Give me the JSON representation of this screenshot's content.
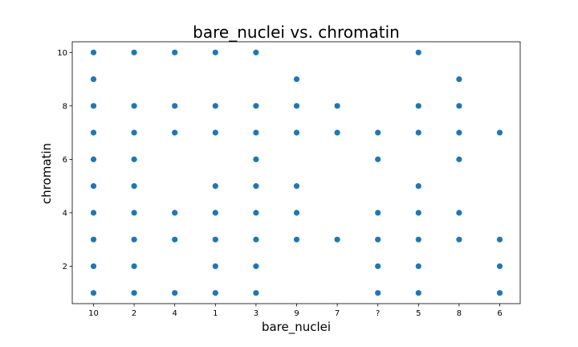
{
  "chart_data": {
    "type": "scatter",
    "title": "bare_nuclei vs. chromatin",
    "xlabel": "bare_nuclei",
    "ylabel": "chromatin",
    "categories": [
      "10",
      "2",
      "4",
      "1",
      "3",
      "9",
      "7",
      "?",
      "5",
      "8",
      "6"
    ],
    "yticks": [
      2,
      4,
      6,
      8,
      10
    ],
    "ylim": [
      0.6,
      10.4
    ],
    "grid": false,
    "point_color": "#1f77b4",
    "points": [
      {
        "x": "10",
        "y": [
          1,
          2,
          3,
          4,
          5,
          6,
          7,
          8,
          9,
          10
        ]
      },
      {
        "x": "2",
        "y": [
          1,
          2,
          3,
          4,
          5,
          6,
          7,
          8,
          10
        ]
      },
      {
        "x": "4",
        "y": [
          1,
          3,
          4,
          7,
          8,
          10
        ]
      },
      {
        "x": "1",
        "y": [
          1,
          2,
          3,
          4,
          5,
          7,
          8,
          10
        ]
      },
      {
        "x": "3",
        "y": [
          1,
          2,
          3,
          4,
          5,
          6,
          7,
          8,
          10
        ]
      },
      {
        "x": "9",
        "y": [
          3,
          4,
          5,
          7,
          8,
          9
        ]
      },
      {
        "x": "7",
        "y": [
          3,
          7,
          8
        ]
      },
      {
        "x": "?",
        "y": [
          1,
          2,
          3,
          4,
          6,
          7
        ]
      },
      {
        "x": "5",
        "y": [
          1,
          2,
          3,
          4,
          5,
          7,
          8,
          10
        ]
      },
      {
        "x": "8",
        "y": [
          3,
          4,
          6,
          7,
          8,
          9
        ]
      },
      {
        "x": "6",
        "y": [
          1,
          2,
          3,
          7
        ]
      }
    ]
  }
}
